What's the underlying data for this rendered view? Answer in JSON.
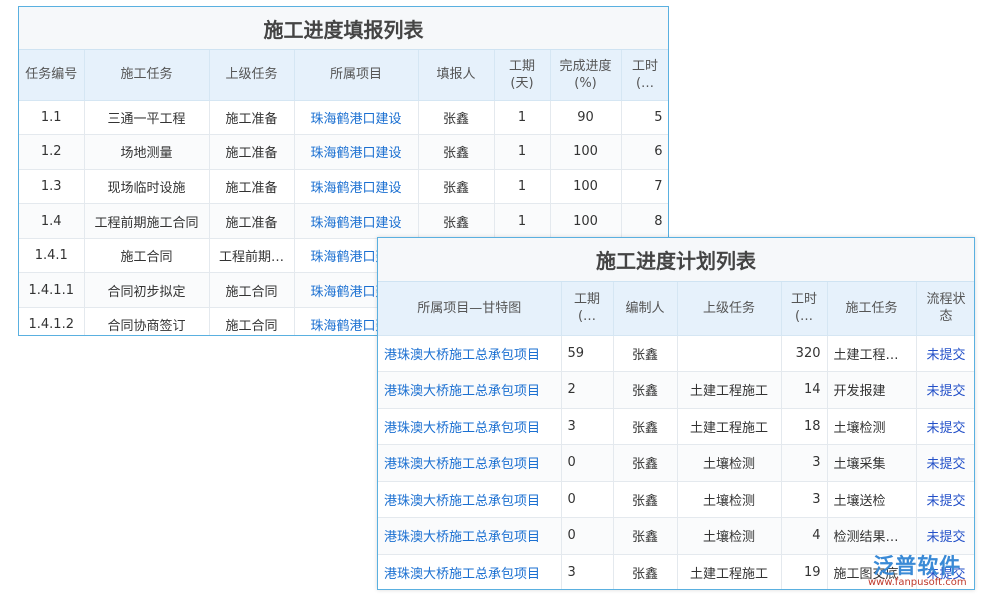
{
  "table1": {
    "title": "施工进度填报列表",
    "headers": [
      "任务编号",
      "施工任务",
      "上级任务",
      "所属项目",
      "填报人",
      "工期(天)",
      "完成进度(%)",
      "工时(…"
    ],
    "rows": [
      [
        "1.1",
        "三通一平工程",
        "施工准备",
        "珠海鹤港口建设",
        "张鑫",
        "1",
        "90",
        "5"
      ],
      [
        "1.2",
        "场地测量",
        "施工准备",
        "珠海鹤港口建设",
        "张鑫",
        "1",
        "100",
        "6"
      ],
      [
        "1.3",
        "现场临时设施",
        "施工准备",
        "珠海鹤港口建设",
        "张鑫",
        "1",
        "100",
        "7"
      ],
      [
        "1.4",
        "工程前期施工合同",
        "施工准备",
        "珠海鹤港口建设",
        "张鑫",
        "1",
        "100",
        "8"
      ],
      [
        "1.4.1",
        "施工合同",
        "工程前期…",
        "珠海鹤港口建设"
      ],
      [
        "1.4.1.1",
        "合同初步拟定",
        "施工合同",
        "珠海鹤港口建设"
      ],
      [
        "1.4.1.2",
        "合同协商签订",
        "施工合同",
        "珠海鹤港口建设"
      ]
    ]
  },
  "table2": {
    "title": "施工进度计划列表",
    "headers": [
      "所属项目—甘特图",
      "工期(…",
      "编制人",
      "上级任务",
      "工时(…",
      "施工任务",
      "流程状态"
    ],
    "rows": [
      [
        "港珠澳大桥施工总承包项目",
        "59",
        "张鑫",
        null,
        "320",
        "土建工程…",
        "未提交"
      ],
      [
        "港珠澳大桥施工总承包项目",
        "2",
        "张鑫",
        "土建工程施工",
        "14",
        "开发报建",
        "未提交"
      ],
      [
        "港珠澳大桥施工总承包项目",
        "3",
        "张鑫",
        "土建工程施工",
        "18",
        "土壤检测",
        "未提交"
      ],
      [
        "港珠澳大桥施工总承包项目",
        "0",
        "张鑫",
        "土壤检测",
        "3",
        "土壤采集",
        "未提交"
      ],
      [
        "港珠澳大桥施工总承包项目",
        "0",
        "张鑫",
        "土壤检测",
        "3",
        "土壤送检",
        "未提交"
      ],
      [
        "港珠澳大桥施工总承包项目",
        "0",
        "张鑫",
        "土壤检测",
        "4",
        "检测结果…",
        "未提交"
      ],
      [
        "港珠澳大桥施工总承包项目",
        "3",
        "张鑫",
        "土建工程施工",
        "19",
        "施工图交底",
        "未提交"
      ]
    ]
  },
  "logo": {
    "name": "泛普软件",
    "url": "www.fanpusoft.com"
  }
}
